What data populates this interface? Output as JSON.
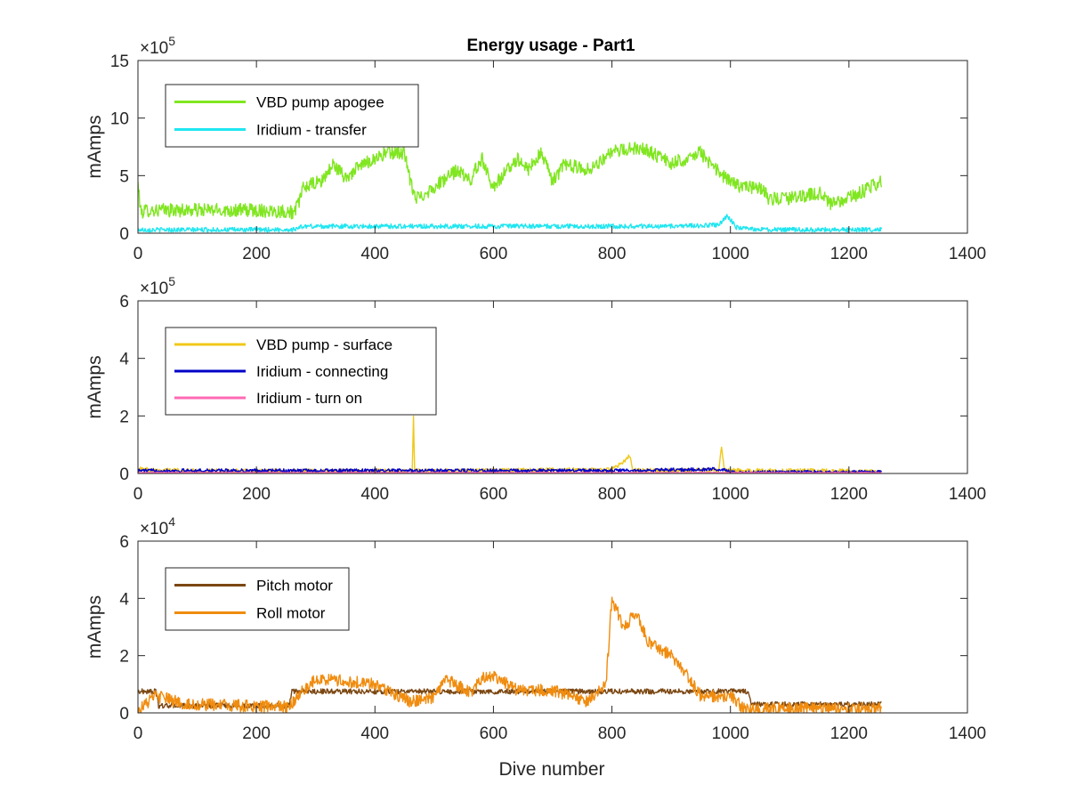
{
  "figure": {
    "title": "Energy usage - Part1",
    "xlabel": "Dive number"
  },
  "chart_data": [
    {
      "type": "line",
      "title": "Energy usage - Part1",
      "xlabel": "",
      "ylabel": "mAmps",
      "y_multiplier_base": "×10",
      "y_multiplier_exp": "5",
      "y_scale": 100000,
      "xlim": [
        0,
        1400
      ],
      "ylim": [
        0,
        1500000
      ],
      "xticks": [
        "0",
        "200",
        "400",
        "600",
        "800",
        "1000",
        "1200",
        "1400"
      ],
      "yticks": [
        "0",
        "5",
        "10",
        "15"
      ],
      "xtick_values": [
        0,
        200,
        400,
        600,
        800,
        1000,
        1200,
        1400
      ],
      "ytick_values": [
        0,
        500000,
        1000000,
        1500000
      ],
      "legend_position": "top-left",
      "series": [
        {
          "name": "VBD pump apogee",
          "color": "#80e620",
          "noise": 60000,
          "points": [
            [
              0,
              430000
            ],
            [
              5,
              180000
            ],
            [
              15,
              200000
            ],
            [
              100,
              200000
            ],
            [
              200,
              200000
            ],
            [
              250,
              190000
            ],
            [
              265,
              180000
            ],
            [
              280,
              400000
            ],
            [
              310,
              450000
            ],
            [
              330,
              600000
            ],
            [
              350,
              480000
            ],
            [
              380,
              600000
            ],
            [
              400,
              650000
            ],
            [
              420,
              700000
            ],
            [
              450,
              700000
            ],
            [
              460,
              430000
            ],
            [
              470,
              300000
            ],
            [
              500,
              400000
            ],
            [
              540,
              550000
            ],
            [
              560,
              450000
            ],
            [
              580,
              650000
            ],
            [
              600,
              400000
            ],
            [
              640,
              650000
            ],
            [
              660,
              550000
            ],
            [
              680,
              700000
            ],
            [
              700,
              450000
            ],
            [
              720,
              600000
            ],
            [
              760,
              550000
            ],
            [
              800,
              700000
            ],
            [
              850,
              750000
            ],
            [
              900,
              600000
            ],
            [
              950,
              700000
            ],
            [
              975,
              550000
            ],
            [
              1000,
              450000
            ],
            [
              1020,
              400000
            ],
            [
              1050,
              400000
            ],
            [
              1065,
              300000
            ],
            [
              1100,
              300000
            ],
            [
              1150,
              350000
            ],
            [
              1170,
              250000
            ],
            [
              1200,
              300000
            ],
            [
              1255,
              450000
            ]
          ]
        },
        {
          "name": "Iridium - transfer",
          "color": "#1fe6f0",
          "noise": 20000,
          "points": [
            [
              0,
              30000
            ],
            [
              260,
              30000
            ],
            [
              280,
              60000
            ],
            [
              500,
              60000
            ],
            [
              700,
              60000
            ],
            [
              900,
              60000
            ],
            [
              980,
              70000
            ],
            [
              995,
              150000
            ],
            [
              1010,
              50000
            ],
            [
              1050,
              30000
            ],
            [
              1255,
              30000
            ]
          ]
        }
      ]
    },
    {
      "type": "line",
      "xlabel": "",
      "ylabel": "mAmps",
      "y_multiplier_base": "×10",
      "y_multiplier_exp": "5",
      "y_scale": 100000,
      "xlim": [
        0,
        1400
      ],
      "ylim": [
        0,
        600000
      ],
      "xticks": [
        "0",
        "200",
        "400",
        "600",
        "800",
        "1000",
        "1200",
        "1400"
      ],
      "yticks": [
        "0",
        "2",
        "4",
        "6"
      ],
      "xtick_values": [
        0,
        200,
        400,
        600,
        800,
        1000,
        1200,
        1400
      ],
      "ytick_values": [
        0,
        200000,
        400000,
        600000
      ],
      "legend_position": "top-left",
      "series": [
        {
          "name": "VBD pump - surface",
          "color": "#f0c81a",
          "noise": 8000,
          "points": [
            [
              0,
              15000
            ],
            [
              100,
              8000
            ],
            [
              300,
              8000
            ],
            [
              463,
              8000
            ],
            [
              465,
              200000
            ],
            [
              467,
              8000
            ],
            [
              600,
              10000
            ],
            [
              680,
              12000
            ],
            [
              800,
              12000
            ],
            [
              830,
              60000
            ],
            [
              835,
              10000
            ],
            [
              980,
              10000
            ],
            [
              985,
              90000
            ],
            [
              990,
              10000
            ],
            [
              1200,
              8000
            ],
            [
              1255,
              5000
            ]
          ]
        },
        {
          "name": "Iridium - connecting",
          "color": "#0000c8",
          "noise": 6000,
          "points": [
            [
              0,
              10000
            ],
            [
              400,
              10000
            ],
            [
              800,
              10000
            ],
            [
              990,
              15000
            ],
            [
              1000,
              5000
            ],
            [
              1255,
              5000
            ]
          ]
        },
        {
          "name": "Iridium - turn on",
          "color": "#ff69b4",
          "noise": 1500,
          "points": [
            [
              0,
              3000
            ],
            [
              1255,
              3000
            ]
          ]
        }
      ]
    },
    {
      "type": "line",
      "xlabel": "Dive number",
      "ylabel": "mAmps",
      "y_multiplier_base": "×10",
      "y_multiplier_exp": "4",
      "y_scale": 10000,
      "xlim": [
        0,
        1400
      ],
      "ylim": [
        0,
        60000
      ],
      "xticks": [
        "0",
        "200",
        "400",
        "600",
        "800",
        "1000",
        "1200",
        "1400"
      ],
      "yticks": [
        "0",
        "2",
        "4",
        "6"
      ],
      "xtick_values": [
        0,
        200,
        400,
        600,
        800,
        1000,
        1200,
        1400
      ],
      "ytick_values": [
        0,
        20000,
        40000,
        60000
      ],
      "legend_position": "top-left",
      "series": [
        {
          "name": "Pitch motor",
          "color": "#7b4712",
          "noise": 900,
          "points": [
            [
              0,
              7500
            ],
            [
              30,
              7500
            ],
            [
              35,
              2500
            ],
            [
              255,
              2500
            ],
            [
              260,
              7500
            ],
            [
              1030,
              7500
            ],
            [
              1035,
              3000
            ],
            [
              1255,
              3000
            ]
          ]
        },
        {
          "name": "Roll motor",
          "color": "#f08c0f",
          "noise": 2200,
          "points": [
            [
              0,
              1000
            ],
            [
              30,
              6000
            ],
            [
              80,
              3000
            ],
            [
              255,
              2000
            ],
            [
              280,
              8000
            ],
            [
              300,
              12000
            ],
            [
              400,
              10000
            ],
            [
              420,
              8000
            ],
            [
              460,
              4000
            ],
            [
              500,
              5000
            ],
            [
              520,
              12000
            ],
            [
              560,
              7000
            ],
            [
              580,
              12000
            ],
            [
              600,
              13000
            ],
            [
              640,
              8000
            ],
            [
              700,
              8000
            ],
            [
              760,
              4000
            ],
            [
              790,
              10000
            ],
            [
              800,
              40000
            ],
            [
              820,
              30000
            ],
            [
              840,
              35000
            ],
            [
              860,
              25000
            ],
            [
              900,
              20000
            ],
            [
              930,
              12000
            ],
            [
              950,
              6000
            ],
            [
              1000,
              6000
            ],
            [
              1025,
              1000
            ],
            [
              1100,
              1500
            ],
            [
              1255,
              1500
            ]
          ]
        }
      ]
    }
  ]
}
